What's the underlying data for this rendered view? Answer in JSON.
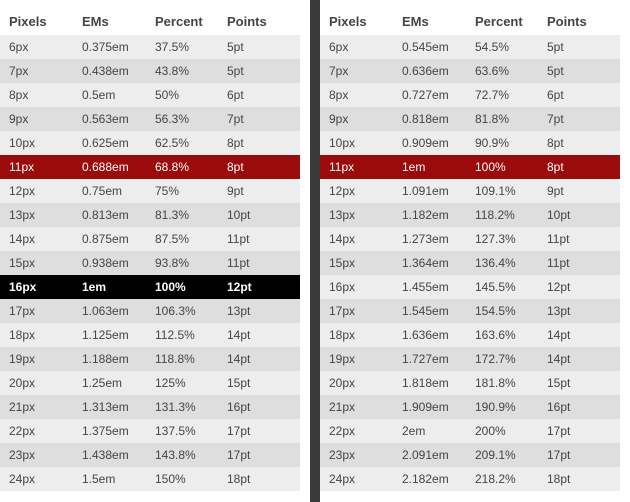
{
  "headers": [
    "Pixels",
    "EMs",
    "Percent",
    "Points"
  ],
  "colors": {
    "divider": "#3a3a3a",
    "row_light": "#ededed",
    "row_dark": "#dedede",
    "base_row": "#000000",
    "highlight_row": "#9b0b0b"
  },
  "left_table": {
    "base_row_index": 10,
    "highlight_row_index": 5,
    "rows": [
      [
        "6px",
        "0.375em",
        "37.5%",
        "5pt"
      ],
      [
        "7px",
        "0.438em",
        "43.8%",
        "5pt"
      ],
      [
        "8px",
        "0.5em",
        "50%",
        "6pt"
      ],
      [
        "9px",
        "0.563em",
        "56.3%",
        "7pt"
      ],
      [
        "10px",
        "0.625em",
        "62.5%",
        "8pt"
      ],
      [
        "11px",
        "0.688em",
        "68.8%",
        "8pt"
      ],
      [
        "12px",
        "0.75em",
        "75%",
        "9pt"
      ],
      [
        "13px",
        "0.813em",
        "81.3%",
        "10pt"
      ],
      [
        "14px",
        "0.875em",
        "87.5%",
        "11pt"
      ],
      [
        "15px",
        "0.938em",
        "93.8%",
        "11pt"
      ],
      [
        "16px",
        "1em",
        "100%",
        "12pt"
      ],
      [
        "17px",
        "1.063em",
        "106.3%",
        "13pt"
      ],
      [
        "18px",
        "1.125em",
        "112.5%",
        "14pt"
      ],
      [
        "19px",
        "1.188em",
        "118.8%",
        "14pt"
      ],
      [
        "20px",
        "1.25em",
        "125%",
        "15pt"
      ],
      [
        "21px",
        "1.313em",
        "131.3%",
        "16pt"
      ],
      [
        "22px",
        "1.375em",
        "137.5%",
        "17pt"
      ],
      [
        "23px",
        "1.438em",
        "143.8%",
        "17pt"
      ],
      [
        "24px",
        "1.5em",
        "150%",
        "18pt"
      ]
    ]
  },
  "right_table": {
    "base_row_index": -1,
    "highlight_row_index": 5,
    "rows": [
      [
        "6px",
        "0.545em",
        "54.5%",
        "5pt"
      ],
      [
        "7px",
        "0.636em",
        "63.6%",
        "5pt"
      ],
      [
        "8px",
        "0.727em",
        "72.7%",
        "6pt"
      ],
      [
        "9px",
        "0.818em",
        "81.8%",
        "7pt"
      ],
      [
        "10px",
        "0.909em",
        "90.9%",
        "8pt"
      ],
      [
        "11px",
        "1em",
        "100%",
        "8pt"
      ],
      [
        "12px",
        "1.091em",
        "109.1%",
        "9pt"
      ],
      [
        "13px",
        "1.182em",
        "118.2%",
        "10pt"
      ],
      [
        "14px",
        "1.273em",
        "127.3%",
        "11pt"
      ],
      [
        "15px",
        "1.364em",
        "136.4%",
        "11pt"
      ],
      [
        "16px",
        "1.455em",
        "145.5%",
        "12pt"
      ],
      [
        "17px",
        "1.545em",
        "154.5%",
        "13pt"
      ],
      [
        "18px",
        "1.636em",
        "163.6%",
        "14pt"
      ],
      [
        "19px",
        "1.727em",
        "172.7%",
        "14pt"
      ],
      [
        "20px",
        "1.818em",
        "181.8%",
        "15pt"
      ],
      [
        "21px",
        "1.909em",
        "190.9%",
        "16pt"
      ],
      [
        "22px",
        "2em",
        "200%",
        "17pt"
      ],
      [
        "23px",
        "2.091em",
        "209.1%",
        "17pt"
      ],
      [
        "24px",
        "2.182em",
        "218.2%",
        "18pt"
      ]
    ]
  }
}
